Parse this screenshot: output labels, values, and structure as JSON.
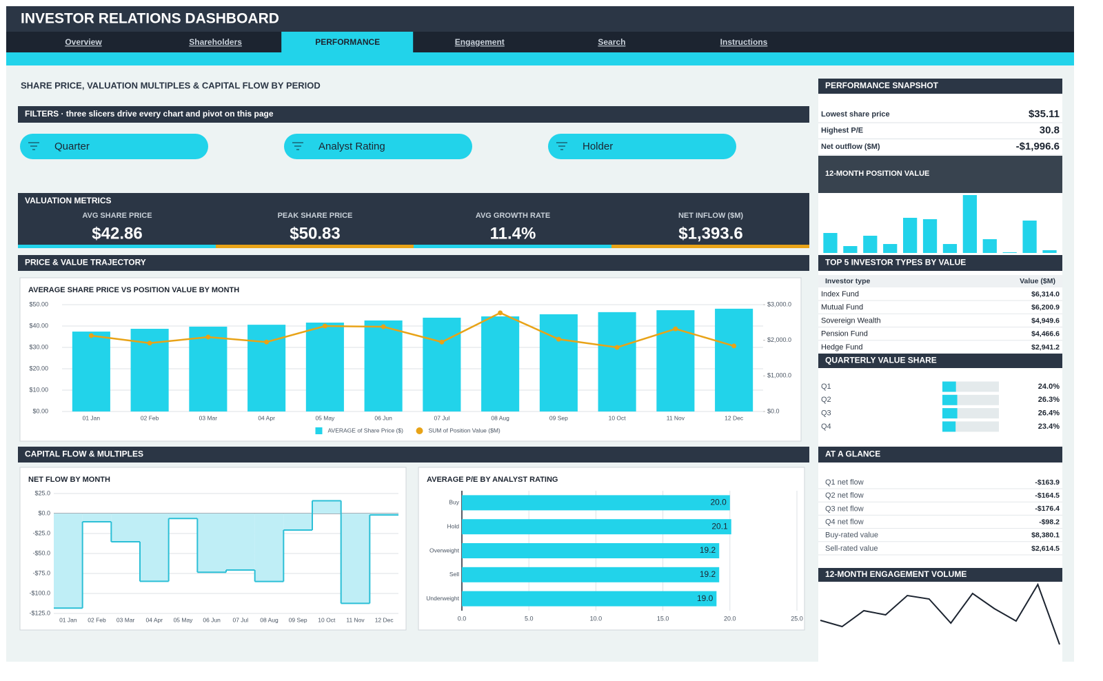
{
  "header": {
    "title": "INVESTOR RELATIONS DASHBOARD"
  },
  "nav": {
    "tabs": [
      "Overview",
      "Shareholders",
      "PERFORMANCE",
      "Engagement",
      "Search",
      "Instructions"
    ],
    "active": 2
  },
  "page_title": "SHARE PRICE, VALUATION MULTIPLES & CAPITAL FLOW BY PERIOD",
  "filters": {
    "title": "FILTERS  ·  three slicers drive every chart and pivot on this page",
    "slicers": [
      "Quarter",
      "Analyst Rating",
      "Holder"
    ]
  },
  "valuation": {
    "title": "VALUATION METRICS",
    "kpis": [
      {
        "label": "AVG SHARE PRICE",
        "value": "$42.86"
      },
      {
        "label": "PEAK SHARE PRICE",
        "value": "$50.83"
      },
      {
        "label": "AVG GROWTH RATE",
        "value": "11.4%"
      },
      {
        "label": "NET INFLOW ($M)",
        "value": "$1,393.6"
      }
    ]
  },
  "trajectory": {
    "title": "PRICE & VALUE TRAJECTORY",
    "chart": {
      "type": "bar-line",
      "title": "AVERAGE SHARE PRICE VS POSITION VALUE BY MONTH",
      "categories": [
        "01 Jan",
        "02 Feb",
        "03 Mar",
        "04 Apr",
        "05 May",
        "06 Jun",
        "07 Jul",
        "08 Aug",
        "09 Sep",
        "10 Oct",
        "11 Nov",
        "12 Dec"
      ],
      "series": [
        {
          "name": "AVERAGE of Share Price ($)",
          "type": "bar",
          "color": "#22d3ea",
          "values": [
            37.4,
            38.7,
            39.7,
            40.6,
            41.6,
            42.6,
            43.9,
            44.5,
            45.5,
            46.5,
            47.4,
            48.1
          ]
        },
        {
          "name": "SUM of Position Value ($M)",
          "type": "line",
          "axis": "y2",
          "color": "#e8a317",
          "values": [
            2130,
            1920,
            2090,
            1950,
            2400,
            2380,
            1950,
            2770,
            2030,
            1800,
            2320,
            1840
          ]
        }
      ],
      "ylim": [
        0,
        50
      ],
      "yticks": [
        {
          "value": 0,
          "label": "$0.00"
        },
        {
          "value": 10,
          "label": "$10.00"
        },
        {
          "value": 20,
          "label": "$20.00"
        },
        {
          "value": 30,
          "label": "$30.00"
        },
        {
          "value": 40,
          "label": "$40.00"
        },
        {
          "value": 50,
          "label": "$50.00"
        }
      ],
      "y2lim": [
        0,
        3000
      ],
      "y2ticks": [
        {
          "value": 0,
          "label": "$0.0"
        },
        {
          "value": 1000,
          "label": "$1,000.0"
        },
        {
          "value": 2000,
          "label": "$2,000.0"
        },
        {
          "value": 3000,
          "label": "$3,000.0"
        }
      ],
      "grid": true
    }
  },
  "capital": {
    "title": "CAPITAL FLOW & MULTIPLES",
    "net_flow": {
      "type": "step-area",
      "title": "NET FLOW BY MONTH",
      "categories": [
        "01 Jan",
        "02 Feb",
        "03 Mar",
        "04 Apr",
        "05 May",
        "06 Jun",
        "07 Jul",
        "08 Aug",
        "09 Sep",
        "10 Oct",
        "11 Nov",
        "12 Dec"
      ],
      "values": [
        -118.3,
        -10.3,
        -35.3,
        -84.8,
        -6.2,
        -73.5,
        -70.7,
        -85.0,
        -20.7,
        16.0,
        -112.4,
        -1.8
      ],
      "color": "#2bbfd6",
      "ylim": [
        -125,
        25
      ],
      "yticks": [
        {
          "value": 25,
          "label": "$25.0"
        },
        {
          "value": 0,
          "label": "$0.0"
        },
        {
          "value": -25,
          "label": "-$25.0"
        },
        {
          "value": -50,
          "label": "-$50.0"
        },
        {
          "value": -75,
          "label": "-$75.0"
        },
        {
          "value": -100,
          "label": "-$100.0"
        },
        {
          "value": -125,
          "label": "-$125.0"
        }
      ],
      "grid": true
    },
    "pe": {
      "type": "hbar",
      "title": "AVERAGE P/E BY ANALYST RATING",
      "categories": [
        "Buy",
        "Hold",
        "Overweight",
        "Sell",
        "Underweight"
      ],
      "values": [
        20.0,
        20.1,
        19.2,
        19.2,
        19.0
      ],
      "value_labels": [
        "20.0",
        "20.1",
        "19.2",
        "19.2",
        "19.0"
      ],
      "color": "#22d3ea",
      "xlim": [
        0,
        25
      ],
      "xticks": [
        {
          "value": 0,
          "label": "0.0"
        },
        {
          "value": 5,
          "label": "5.0"
        },
        {
          "value": 10,
          "label": "10.0"
        },
        {
          "value": 15,
          "label": "15.0"
        },
        {
          "value": 20,
          "label": "20.0"
        },
        {
          "value": 25,
          "label": "25.0"
        }
      ],
      "grid": true
    }
  },
  "snapshot": {
    "title": "PERFORMANCE SNAPSHOT",
    "rows": [
      {
        "label": "Lowest share price",
        "value": "$35.11"
      },
      {
        "label": "Highest P/E",
        "value": "30.8"
      },
      {
        "label": "Net outflow ($M)",
        "value": "-$1,996.6"
      }
    ]
  },
  "position_value": {
    "title": "12-MONTH POSITION VALUE",
    "chart": {
      "type": "bar",
      "values": [
        29,
        10,
        25,
        13,
        51,
        49,
        13,
        84,
        20,
        1,
        47,
        4
      ],
      "ylim": [
        0,
        87
      ],
      "color": "#22d3ea"
    }
  },
  "top_investors": {
    "title": "TOP 5 INVESTOR TYPES BY VALUE",
    "columns": [
      "Investor type",
      "Value ($M)"
    ],
    "rows": [
      [
        "Index Fund",
        "$6,314.0"
      ],
      [
        "Mutual Fund",
        "$6,200.9"
      ],
      [
        "Sovereign Wealth",
        "$4,949.6"
      ],
      [
        "Pension Fund",
        "$4,466.6"
      ],
      [
        "Hedge Fund",
        "$2,941.2"
      ]
    ]
  },
  "quarterly_share": {
    "title": "QUARTERLY VALUE SHARE",
    "chart": {
      "type": "progress",
      "categories": [
        "Q1",
        "Q2",
        "Q3",
        "Q4"
      ],
      "values": [
        24.0,
        26.3,
        26.4,
        23.4
      ],
      "value_labels": [
        "24.0%",
        "26.3%",
        "26.4%",
        "23.4%"
      ],
      "xlim": [
        0,
        100
      ],
      "color": "#22d3ea"
    }
  },
  "at_a_glance": {
    "title": "AT A GLANCE",
    "rows": [
      [
        "Q1 net flow",
        "-$163.9"
      ],
      [
        "Q2 net flow",
        "-$164.5"
      ],
      [
        "Q3 net flow",
        "-$176.4"
      ],
      [
        "Q4 net flow",
        "-$98.2"
      ],
      [
        "Buy-rated value",
        "$8,380.1"
      ],
      [
        "Sell-rated value",
        "$2,614.5"
      ]
    ]
  },
  "engagement": {
    "title": "12-MONTH ENGAGEMENT VOLUME",
    "chart": {
      "type": "line",
      "values": [
        40,
        31,
        54,
        48,
        76,
        71,
        36,
        79,
        57,
        39,
        92,
        5
      ],
      "ylim": [
        0,
        95
      ],
      "color": "#1c2430"
    }
  }
}
